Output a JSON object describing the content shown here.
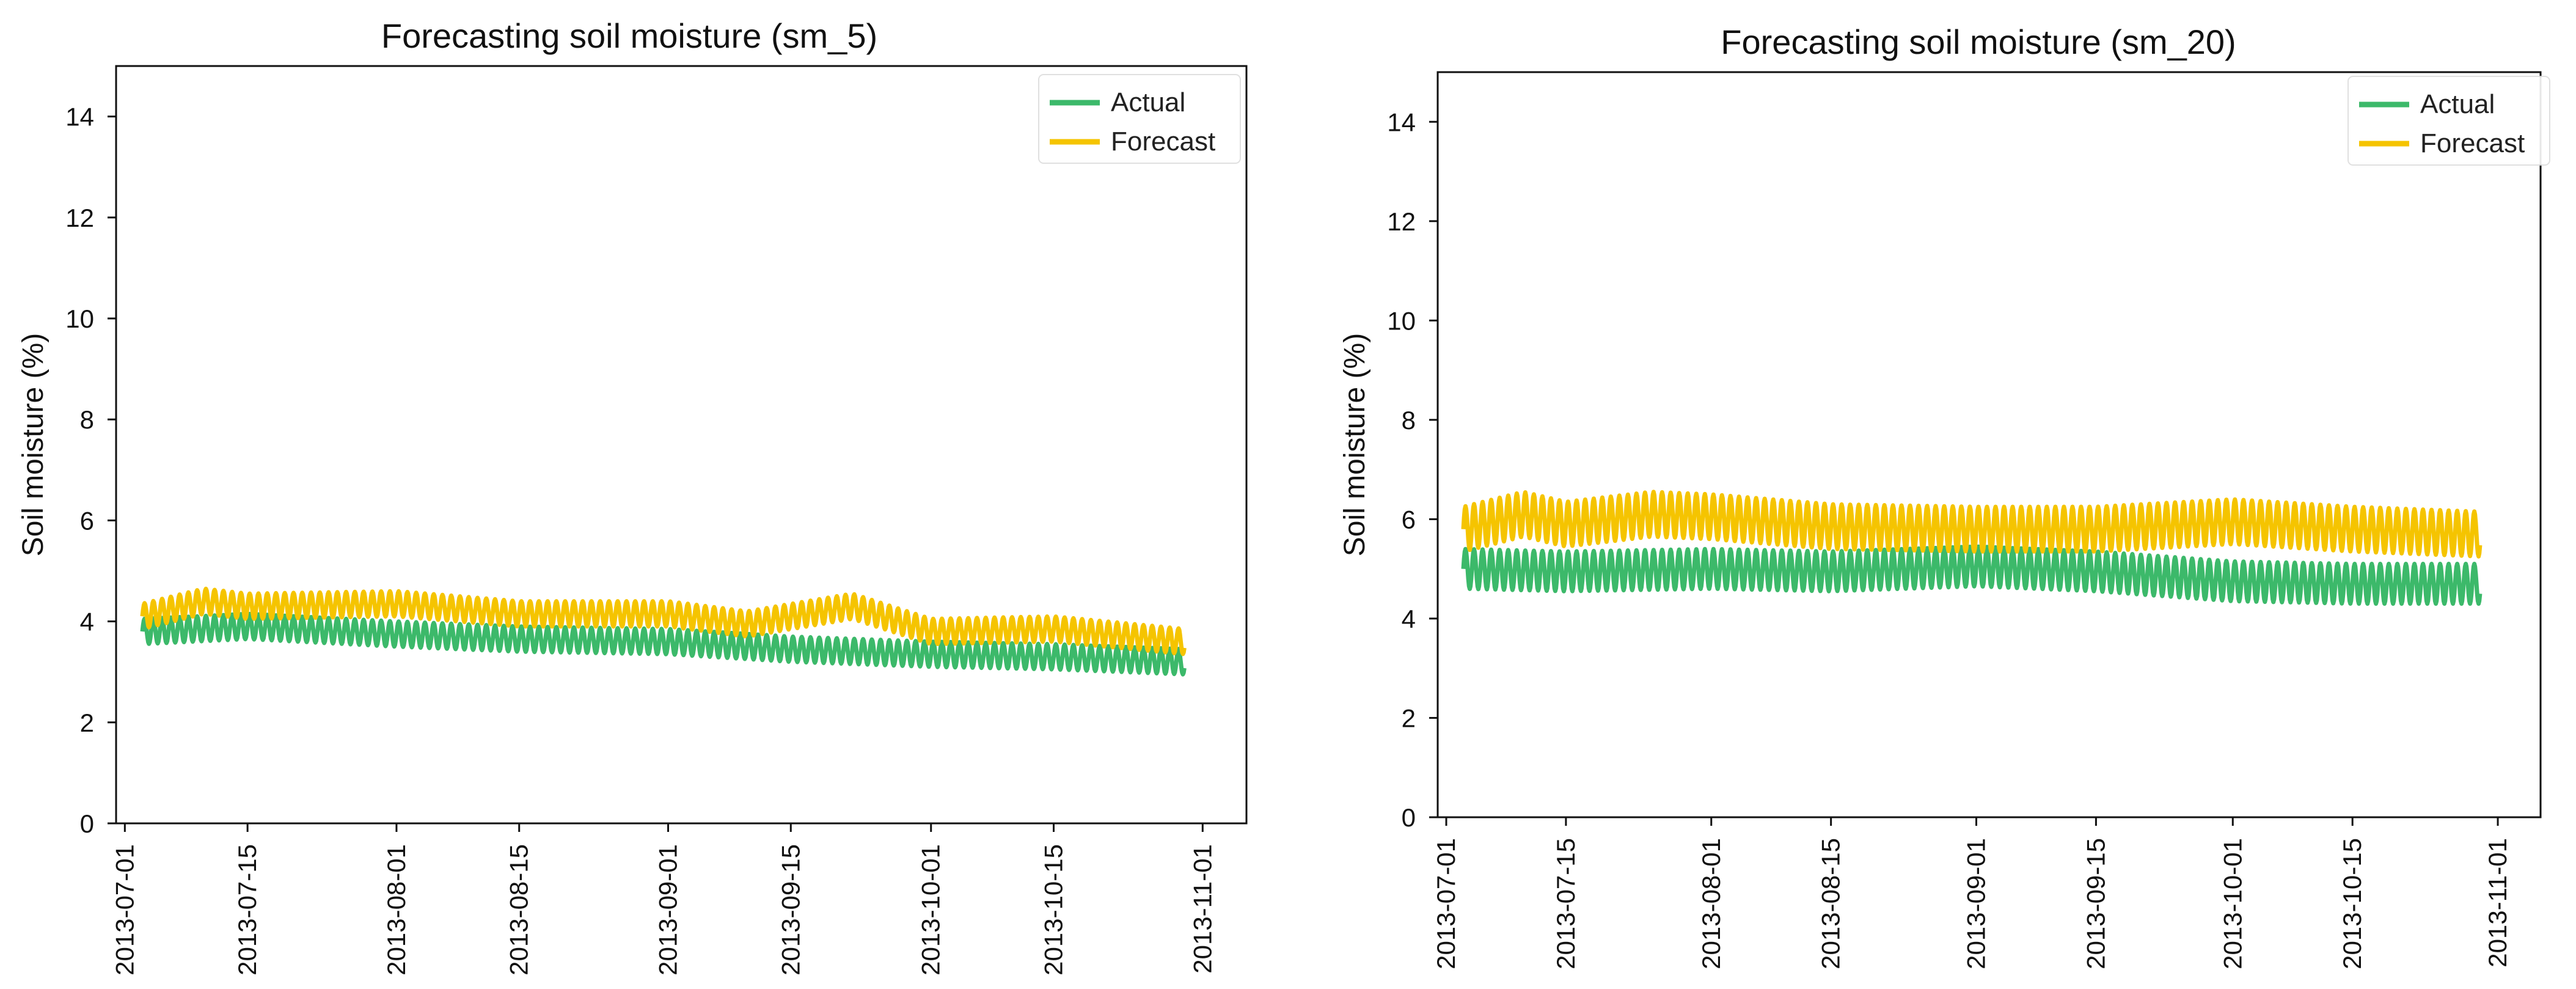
{
  "chart_data": [
    {
      "type": "line",
      "title": "Forecasting soil moisture (sm_5)",
      "xlabel": "",
      "ylabel": "Soil moisture (%)",
      "ylim": [
        0,
        15
      ],
      "yticks": [
        0,
        2,
        4,
        6,
        8,
        10,
        12,
        14
      ],
      "xlim": [
        "2013-06-30",
        "2013-11-06"
      ],
      "xticks": [
        "2013-07-01",
        "2013-07-15",
        "2013-08-01",
        "2013-08-15",
        "2013-09-01",
        "2013-09-15",
        "2013-10-01",
        "2013-10-15",
        "2013-11-01"
      ],
      "x_range": [
        "2013-07-03",
        "2013-10-30"
      ],
      "legend": "top-right",
      "series": [
        {
          "name": "Actual",
          "color": "#3cb96a",
          "daily_mean": [
            [
              "2013-07-03",
              3.8
            ],
            [
              "2013-07-15",
              3.9
            ],
            [
              "2013-08-01",
              3.75
            ],
            [
              "2013-08-15",
              3.65
            ],
            [
              "2013-09-01",
              3.6
            ],
            [
              "2013-09-15",
              3.45
            ],
            [
              "2013-10-01",
              3.35
            ],
            [
              "2013-10-15",
              3.3
            ],
            [
              "2013-10-30",
              3.2
            ]
          ],
          "daily_amplitude": 0.25
        },
        {
          "name": "Forecast",
          "color": "#f5c400",
          "daily_mean": [
            [
              "2013-07-03",
              4.1
            ],
            [
              "2013-07-10",
              4.4
            ],
            [
              "2013-07-15",
              4.3
            ],
            [
              "2013-08-01",
              4.35
            ],
            [
              "2013-08-15",
              4.15
            ],
            [
              "2013-09-01",
              4.15
            ],
            [
              "2013-09-10",
              3.95
            ],
            [
              "2013-09-22",
              4.3
            ],
            [
              "2013-10-01",
              3.8
            ],
            [
              "2013-10-15",
              3.85
            ],
            [
              "2013-10-30",
              3.6
            ]
          ],
          "daily_amplitude": 0.25
        }
      ]
    },
    {
      "type": "line",
      "title": "Forecasting soil moisture (sm_20)",
      "xlabel": "",
      "ylabel": "Soil moisture (%)",
      "ylim": [
        0,
        15
      ],
      "yticks": [
        0,
        2,
        4,
        6,
        8,
        10,
        12,
        14
      ],
      "xlim": [
        "2013-06-30",
        "2013-11-06"
      ],
      "xticks": [
        "2013-07-01",
        "2013-07-15",
        "2013-08-01",
        "2013-08-15",
        "2013-09-01",
        "2013-09-15",
        "2013-10-01",
        "2013-10-15",
        "2013-11-01"
      ],
      "x_range": [
        "2013-07-03",
        "2013-10-30"
      ],
      "legend": "top-right",
      "series": [
        {
          "name": "Actual",
          "color": "#3cb96a",
          "daily_mean": [
            [
              "2013-07-03",
              5.0
            ],
            [
              "2013-07-15",
              4.95
            ],
            [
              "2013-08-01",
              5.0
            ],
            [
              "2013-08-15",
              4.95
            ],
            [
              "2013-09-01",
              5.05
            ],
            [
              "2013-09-15",
              4.95
            ],
            [
              "2013-10-01",
              4.75
            ],
            [
              "2013-10-15",
              4.7
            ],
            [
              "2013-10-30",
              4.7
            ]
          ],
          "daily_amplitude": 0.4
        },
        {
          "name": "Forecast",
          "color": "#f5c400",
          "daily_mean": [
            [
              "2013-07-03",
              5.8
            ],
            [
              "2013-07-10",
              6.1
            ],
            [
              "2013-07-15",
              5.9
            ],
            [
              "2013-07-25",
              6.1
            ],
            [
              "2013-08-01",
              6.05
            ],
            [
              "2013-08-15",
              5.85
            ],
            [
              "2013-09-01",
              5.8
            ],
            [
              "2013-09-15",
              5.8
            ],
            [
              "2013-10-01",
              5.95
            ],
            [
              "2013-10-15",
              5.8
            ],
            [
              "2013-10-30",
              5.7
            ]
          ],
          "daily_amplitude": 0.45
        }
      ]
    }
  ]
}
